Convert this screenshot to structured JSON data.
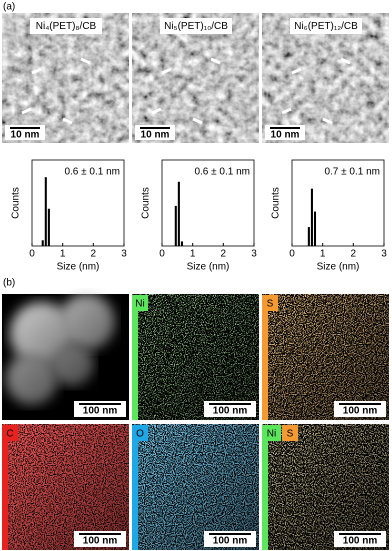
{
  "panel_a_label": "(a)",
  "panel_b_label": "(b)",
  "tem_images": [
    {
      "label": "Ni₄(PET)₈/CB",
      "scale_bar": "10 nm"
    },
    {
      "label": "Ni₅(PET)₁₀/CB",
      "scale_bar": "10 nm"
    },
    {
      "label": "Ni₆(PET)₁₂/CB",
      "scale_bar": "10 nm"
    }
  ],
  "chart_data": [
    {
      "type": "histogram",
      "annotation": "0.6 ± 0.1 nm",
      "x_label": "Size (nm)",
      "y_label": "Counts",
      "bins": [
        0.3,
        0.4,
        0.5,
        0.6
      ],
      "counts": [
        10,
        120,
        65
      ],
      "xlim": [
        0,
        3
      ],
      "xticks": [
        0,
        1,
        2,
        3
      ],
      "ylim": [
        0,
        150
      ],
      "color": "#000000"
    },
    {
      "type": "histogram",
      "annotation": "0.6 ± 0.1 nm",
      "x_label": "Size (nm)",
      "y_label": "Counts",
      "bins": [
        0.4,
        0.5,
        0.6,
        0.7
      ],
      "counts": [
        70,
        112,
        8
      ],
      "xlim": [
        0,
        3
      ],
      "xticks": [
        0,
        1,
        2,
        3
      ],
      "ylim": [
        0,
        150
      ],
      "color": "#000000"
    },
    {
      "type": "histogram",
      "annotation": "0.7 ± 0.1 nm",
      "x_label": "Size (nm)",
      "y_label": "Counts",
      "bins": [
        0.5,
        0.6,
        0.7,
        0.8
      ],
      "counts": [
        33,
        100,
        60
      ],
      "xlim": [
        0,
        3
      ],
      "xticks": [
        0,
        1,
        2,
        3
      ],
      "ylim": [
        0,
        150
      ],
      "color": "#000000"
    }
  ],
  "maps": [
    {
      "scale_bar": "100 nm"
    },
    {
      "labels": [
        "Ni"
      ],
      "scale_bar": "100 nm"
    },
    {
      "labels": [
        "S"
      ],
      "scale_bar": "100 nm"
    },
    {
      "labels": [
        "C"
      ],
      "scale_bar": "100 nm"
    },
    {
      "labels": [
        "O"
      ],
      "scale_bar": "100 nm"
    },
    {
      "labels": [
        "Ni",
        "S"
      ],
      "scale_bar": "100 nm"
    }
  ]
}
